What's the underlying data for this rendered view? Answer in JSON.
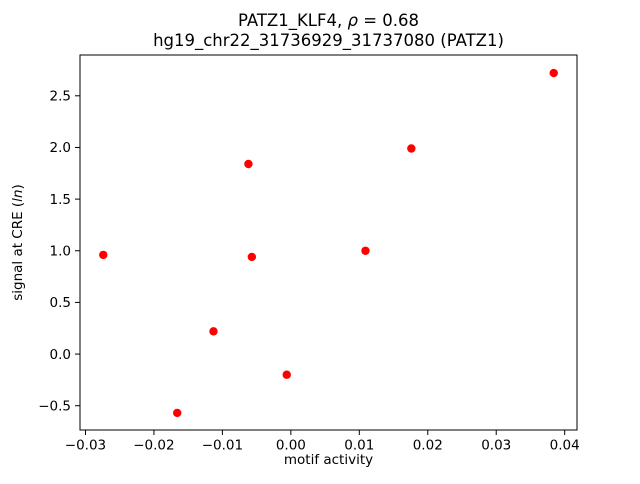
{
  "chart_data": {
    "type": "scatter",
    "title": "PATZ1_KLF4, ρ = 0.68\nhg19_chr22_31736929_31737080 (PATZ1)",
    "title_parts": {
      "line1_pre": "PATZ1_KLF4, ",
      "line1_rho": "ρ",
      "line1_post": " = 0.68",
      "line2": "hg19_chr22_31736929_31737080 (PATZ1)"
    },
    "xlabel": "motif activity",
    "ylabel": "signal at CRE (ln)",
    "ylabel_parts": {
      "prefix": "signal at CRE (",
      "italic": "ln",
      "suffix": ")"
    },
    "marker_color": "#ff0000",
    "marker_style": "circle",
    "grid": false,
    "legend": "none",
    "xlim": [
      -0.0308,
      0.0418
    ],
    "ylim": [
      -0.735,
      2.895
    ],
    "xticks": [
      -0.03,
      -0.02,
      -0.01,
      0,
      0.01,
      0.02,
      0.03,
      0.04
    ],
    "xtick_labels": [
      "−0.03",
      "−0.02",
      "−0.01",
      "0.00",
      "0.01",
      "0.02",
      "0.03",
      "0.04"
    ],
    "yticks": [
      -0.5,
      0,
      0.5,
      1,
      1.5,
      2,
      2.5
    ],
    "ytick_labels": [
      "−0.5",
      "0.0",
      "0.5",
      "1.0",
      "1.5",
      "2.0",
      "2.5"
    ],
    "points": [
      {
        "x": -0.0274,
        "y": 0.96
      },
      {
        "x": -0.0166,
        "y": -0.57
      },
      {
        "x": -0.0113,
        "y": 0.22
      },
      {
        "x": -0.0062,
        "y": 1.84
      },
      {
        "x": -0.0057,
        "y": 0.94
      },
      {
        "x": -0.0006,
        "y": -0.2
      },
      {
        "x": 0.0109,
        "y": 1.0
      },
      {
        "x": 0.0176,
        "y": 1.99
      },
      {
        "x": 0.0384,
        "y": 2.72
      }
    ]
  }
}
